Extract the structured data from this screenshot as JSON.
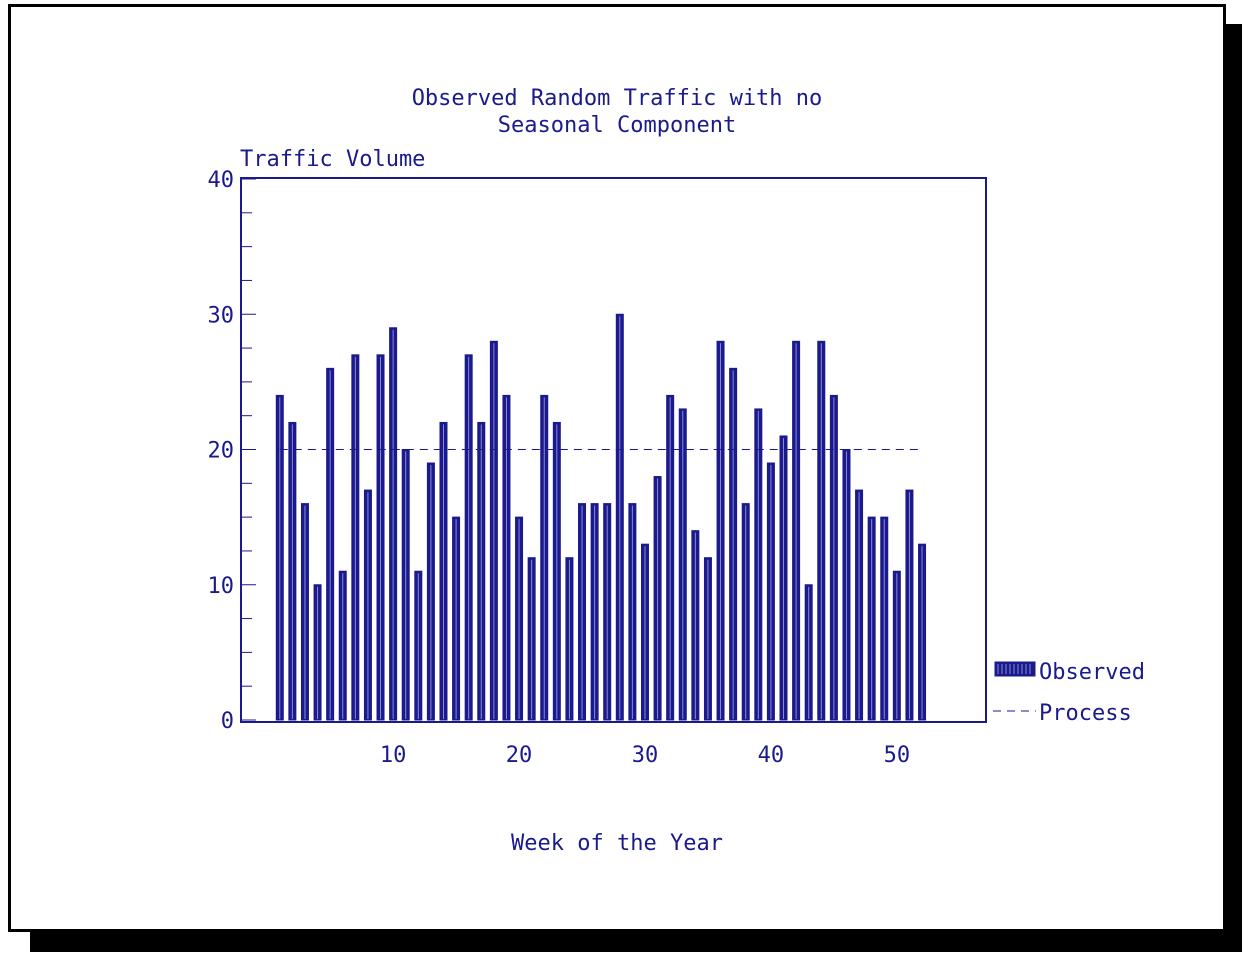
{
  "chart_data": {
    "type": "bar",
    "title_line1": "Observed Random Traffic with no",
    "title_line2": "Seasonal Component",
    "ylabel": "Traffic Volume",
    "xlabel": "Week of the Year",
    "ylim": [
      0,
      40
    ],
    "xlim": [
      -2,
      57
    ],
    "y_ticks": [
      0,
      10,
      20,
      30,
      40
    ],
    "x_ticks": [
      10,
      20,
      30,
      40,
      50
    ],
    "grid": false,
    "legend_position": "right-bottom",
    "colors": {
      "bar": "#1a1a8c",
      "axis": "#1a1a8c",
      "text": "#1a1a8c"
    },
    "x": [
      1,
      2,
      3,
      4,
      5,
      6,
      7,
      8,
      9,
      10,
      11,
      12,
      13,
      14,
      15,
      16,
      17,
      18,
      19,
      20,
      21,
      22,
      23,
      24,
      25,
      26,
      27,
      28,
      29,
      30,
      31,
      32,
      33,
      34,
      35,
      36,
      37,
      38,
      39,
      40,
      41,
      42,
      43,
      44,
      45,
      46,
      47,
      48,
      49,
      50,
      51,
      52
    ],
    "series": [
      {
        "name": "Observed",
        "type": "bar",
        "values": [
          24,
          22,
          16,
          10,
          26,
          11,
          27,
          17,
          27,
          29,
          20,
          11,
          19,
          22,
          15,
          27,
          22,
          28,
          24,
          15,
          12,
          24,
          22,
          12,
          16,
          16,
          16,
          30,
          16,
          13,
          18,
          24,
          23,
          14,
          12,
          28,
          26,
          16,
          23,
          19,
          21,
          28,
          10,
          28,
          24,
          20,
          17,
          15,
          15,
          11,
          17,
          13
        ]
      },
      {
        "name": "Process",
        "type": "line",
        "style": "dashed",
        "x_range": [
          1,
          52
        ],
        "value": 20
      }
    ]
  }
}
